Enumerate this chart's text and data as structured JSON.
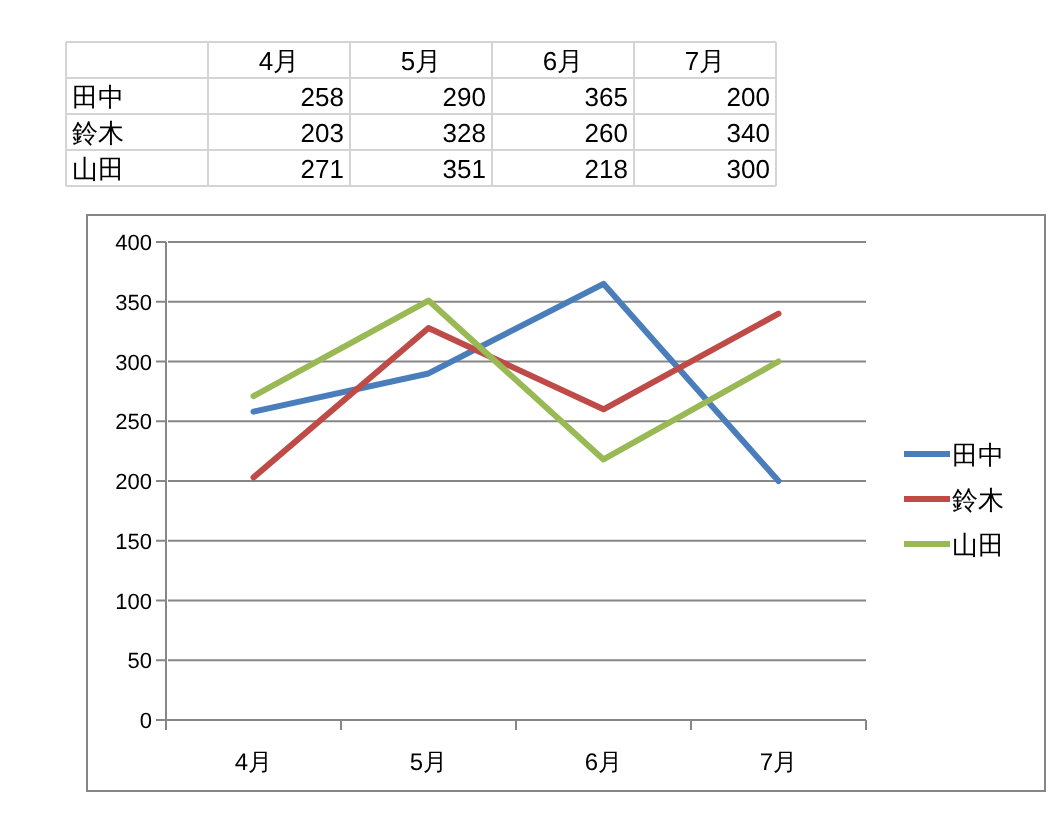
{
  "chart_data": {
    "type": "line",
    "categories": [
      "4月",
      "5月",
      "6月",
      "7月"
    ],
    "series": [
      {
        "name": "田中",
        "color": "#4a7ebb",
        "values": [
          258,
          290,
          365,
          200
        ]
      },
      {
        "name": "鈴木",
        "color": "#be4b48",
        "values": [
          203,
          328,
          260,
          340
        ]
      },
      {
        "name": "山田",
        "color": "#98b954",
        "values": [
          271,
          351,
          218,
          300
        ]
      }
    ],
    "ylim": [
      0,
      400
    ],
    "yticks": [
      0,
      50,
      100,
      150,
      200,
      250,
      300,
      350,
      400
    ],
    "grid": "y",
    "legend": "right",
    "data_labels": true,
    "line_style": "solid"
  }
}
